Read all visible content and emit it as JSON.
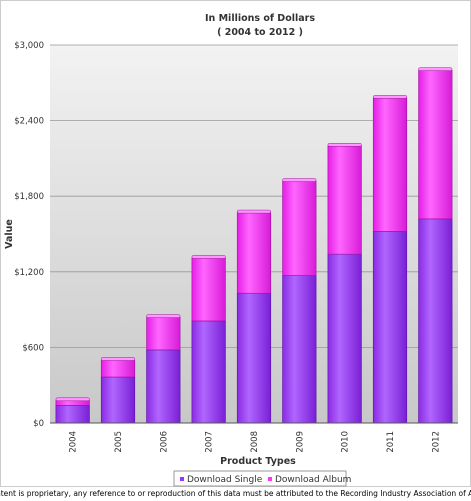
{
  "chart_data": {
    "type": "bar",
    "stacked": true,
    "title": "In Millions of Dollars",
    "subtitle": "( 2004 to 2012 )",
    "xlabel": "Product Types",
    "ylabel": "Value",
    "ylim": [
      0,
      3000
    ],
    "yticks": [
      0,
      600,
      1200,
      1800,
      2400,
      3000
    ],
    "ytick_labels": [
      "$0",
      "$600",
      "$1,200",
      "$1,800",
      "$2,400",
      "$3,000"
    ],
    "categories": [
      "2004",
      "2005",
      "2006",
      "2007",
      "2008",
      "2009",
      "2010",
      "2011",
      "2012"
    ],
    "series": [
      {
        "name": "Download Single",
        "color": "#9933ff",
        "values": [
          140,
          365,
          580,
          810,
          1030,
          1170,
          1340,
          1520,
          1620
        ]
      },
      {
        "name": "Download Album",
        "color": "#ff33ff",
        "values": [
          40,
          135,
          260,
          500,
          640,
          750,
          860,
          1060,
          1180
        ]
      }
    ],
    "grid": true,
    "legend_position": "bottom"
  },
  "footer": "This content is proprietary, any reference to or reproduction of this data must be attributed to the Recording Industry Association of America."
}
